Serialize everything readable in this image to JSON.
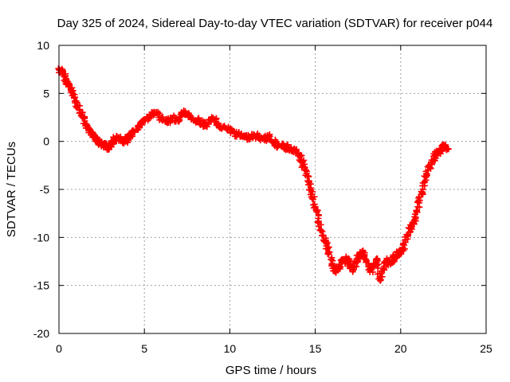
{
  "chart_data": {
    "type": "scatter",
    "title": "Day 325 of 2024, Sidereal Day-to-day VTEC variation (SDTVAR) for receiver p044",
    "xlabel": "GPS time / hours",
    "ylabel": "SDTVAR / TECUs",
    "xlim": [
      0,
      25
    ],
    "ylim": [
      -20,
      10
    ],
    "xticks": [
      0,
      5,
      10,
      15,
      20,
      25
    ],
    "yticks": [
      -20,
      -15,
      -10,
      -5,
      0,
      5,
      10
    ],
    "xtick_labels": [
      "0",
      "5",
      "10",
      "15",
      "20",
      "25"
    ],
    "ytick_labels": [
      "-20",
      "-15",
      "-10",
      "-5",
      "0",
      "5",
      "10"
    ],
    "grid": true,
    "marker": "+",
    "colors": {
      "series": "#ff0000",
      "grid": "#a0a0a0",
      "axis": "#000000"
    },
    "series": [
      {
        "name": "SDTVAR",
        "x": [
          0.0,
          0.2,
          0.4,
          0.6,
          0.8,
          1.0,
          1.2,
          1.4,
          1.6,
          1.8,
          2.0,
          2.2,
          2.4,
          2.6,
          2.8,
          3.0,
          3.2,
          3.5,
          3.8,
          4.0,
          4.2,
          4.5,
          4.8,
          5.0,
          5.3,
          5.6,
          6.0,
          6.3,
          6.6,
          7.0,
          7.3,
          7.6,
          8.0,
          8.3,
          8.6,
          9.0,
          9.3,
          9.6,
          10.0,
          10.3,
          10.6,
          11.0,
          11.3,
          11.6,
          12.0,
          12.3,
          12.6,
          13.0,
          13.3,
          13.6,
          14.0,
          14.2,
          14.4,
          14.6,
          14.8,
          15.0,
          15.2,
          15.4,
          15.6,
          15.8,
          16.0,
          16.2,
          16.4,
          16.6,
          16.8,
          17.0,
          17.2,
          17.4,
          17.6,
          17.8,
          18.0,
          18.2,
          18.4,
          18.6,
          18.8,
          19.0,
          19.2,
          19.4,
          19.6,
          19.8,
          20.0,
          20.2,
          20.4,
          20.6,
          20.8,
          21.0,
          21.2,
          21.4,
          21.6,
          21.8,
          22.0,
          22.2,
          22.4,
          22.6,
          22.8
        ],
        "y": [
          7.5,
          7.2,
          6.5,
          5.8,
          5.0,
          4.2,
          3.3,
          2.5,
          1.8,
          1.2,
          0.6,
          0.2,
          -0.2,
          -0.4,
          -0.6,
          -0.5,
          0.2,
          0.4,
          -0.2,
          0.3,
          0.6,
          1.2,
          1.8,
          2.2,
          2.6,
          3.0,
          2.4,
          2.0,
          2.4,
          2.2,
          3.0,
          2.7,
          2.2,
          2.0,
          1.6,
          2.4,
          1.8,
          1.5,
          1.2,
          0.8,
          0.6,
          0.4,
          0.6,
          0.5,
          0.2,
          0.6,
          -0.2,
          -0.5,
          -0.6,
          -0.8,
          -1.2,
          -2.0,
          -3.0,
          -4.2,
          -5.5,
          -6.8,
          -8.5,
          -9.8,
          -10.5,
          -11.5,
          -12.8,
          -13.5,
          -13.2,
          -12.5,
          -12.2,
          -12.8,
          -13.4,
          -12.6,
          -11.8,
          -11.5,
          -12.4,
          -13.6,
          -13.0,
          -12.2,
          -14.5,
          -13.2,
          -12.4,
          -12.8,
          -12.0,
          -11.8,
          -11.5,
          -10.8,
          -9.8,
          -9.0,
          -8.2,
          -6.8,
          -5.5,
          -4.2,
          -3.0,
          -2.2,
          -1.5,
          -1.2,
          -0.8,
          -0.5,
          -0.8
        ]
      }
    ]
  }
}
